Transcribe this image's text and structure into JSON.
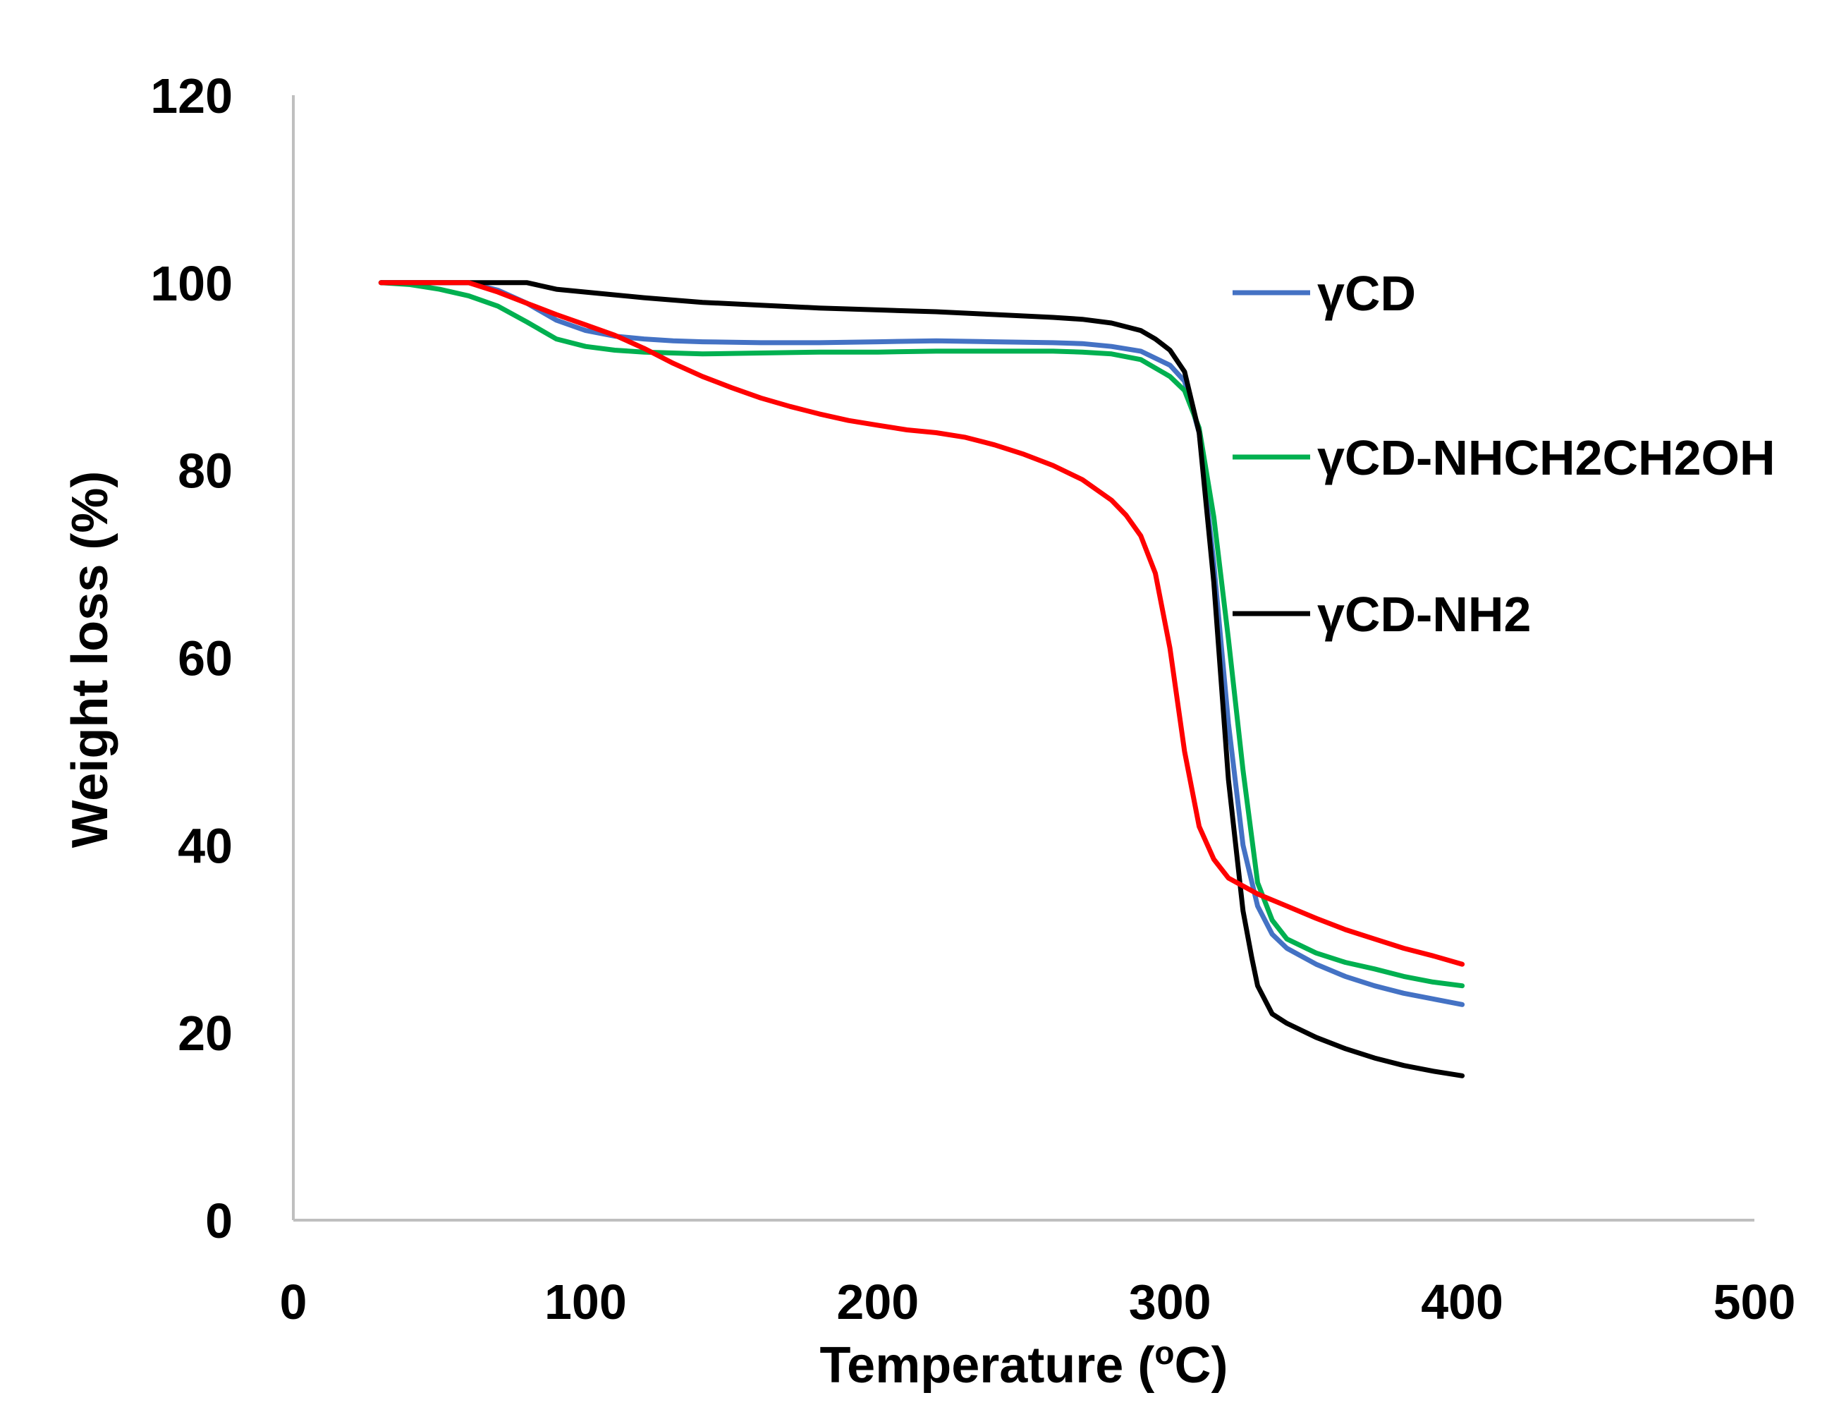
{
  "chart_data": {
    "type": "line",
    "title": "",
    "xlabel": "Temperature (oC)",
    "xlabel_parts": {
      "base": "Temperature (",
      "superscript": "o",
      "suffix": "C)"
    },
    "ylabel": "Weight loss (%)",
    "xlim": [
      0,
      500
    ],
    "ylim": [
      0,
      120
    ],
    "xticks": [
      0,
      100,
      200,
      300,
      400,
      500
    ],
    "yticks": [
      0,
      20,
      40,
      60,
      80,
      100,
      120
    ],
    "grid": false,
    "legend_position": "right",
    "series": [
      {
        "name": "γCD",
        "color": "#4472C4",
        "in_legend": true,
        "x": [
          30,
          40,
          50,
          60,
          70,
          80,
          90,
          100,
          110,
          120,
          130,
          140,
          160,
          180,
          200,
          220,
          240,
          260,
          270,
          280,
          290,
          300,
          305,
          310,
          315,
          320,
          325,
          330,
          335,
          340,
          350,
          360,
          370,
          380,
          390,
          400
        ],
        "y": [
          100,
          100,
          100,
          100,
          99.2,
          97.8,
          96,
          94.9,
          94.3,
          94,
          93.8,
          93.7,
          93.6,
          93.6,
          93.7,
          93.8,
          93.7,
          93.6,
          93.5,
          93.2,
          92.7,
          91.2,
          89.5,
          84,
          70,
          53,
          40,
          33.5,
          30.5,
          29,
          27.3,
          26,
          25,
          24.2,
          23.6,
          23
        ]
      },
      {
        "name": "γCD-NHCH2CH2OH",
        "color": "#00B050",
        "in_legend": true,
        "x": [
          30,
          40,
          50,
          60,
          70,
          80,
          90,
          100,
          110,
          120,
          130,
          140,
          160,
          180,
          200,
          220,
          240,
          260,
          270,
          280,
          290,
          300,
          305,
          310,
          315,
          320,
          325,
          330,
          335,
          340,
          350,
          360,
          370,
          380,
          390,
          400
        ],
        "y": [
          100,
          99.8,
          99.3,
          98.6,
          97.5,
          95.8,
          94,
          93.2,
          92.8,
          92.6,
          92.5,
          92.4,
          92.5,
          92.6,
          92.6,
          92.7,
          92.7,
          92.7,
          92.6,
          92.4,
          91.8,
          90,
          88.5,
          84.5,
          75,
          62,
          48,
          36,
          32,
          30,
          28.5,
          27.5,
          26.8,
          26,
          25.4,
          25
        ]
      },
      {
        "name": "γCD-NH2",
        "color": "#000000",
        "in_legend": true,
        "x": [
          30,
          40,
          50,
          60,
          70,
          80,
          90,
          100,
          120,
          140,
          160,
          180,
          200,
          220,
          240,
          260,
          270,
          280,
          290,
          295,
          300,
          305,
          310,
          315,
          320,
          325,
          328,
          330,
          335,
          340,
          350,
          360,
          370,
          380,
          390,
          400
        ],
        "y": [
          100,
          100,
          100,
          100,
          100,
          100,
          99.3,
          99,
          98.4,
          97.9,
          97.6,
          97.3,
          97.1,
          96.9,
          96.6,
          96.3,
          96.1,
          95.7,
          94.9,
          94,
          92.8,
          90.5,
          84,
          68,
          47,
          33,
          28,
          25,
          22,
          21,
          19.5,
          18.3,
          17.3,
          16.5,
          15.9,
          15.4
        ]
      },
      {
        "name": "",
        "color": "#FF0000",
        "in_legend": false,
        "x": [
          30,
          40,
          50,
          60,
          70,
          80,
          90,
          100,
          110,
          120,
          130,
          140,
          150,
          160,
          170,
          180,
          190,
          200,
          210,
          220,
          230,
          240,
          250,
          260,
          270,
          280,
          285,
          290,
          295,
          300,
          305,
          310,
          315,
          320,
          330,
          340,
          350,
          360,
          370,
          380,
          390,
          400
        ],
        "y": [
          100,
          100,
          100,
          100,
          99,
          97.8,
          96.6,
          95.5,
          94.4,
          93,
          91.4,
          90,
          88.8,
          87.7,
          86.8,
          86,
          85.3,
          84.8,
          84.3,
          84,
          83.5,
          82.7,
          81.7,
          80.5,
          79,
          76.8,
          75.2,
          73,
          69,
          61,
          50,
          42,
          38.5,
          36.5,
          34.8,
          33.5,
          32.2,
          31,
          30,
          29,
          28.2,
          27.3
        ]
      }
    ]
  }
}
